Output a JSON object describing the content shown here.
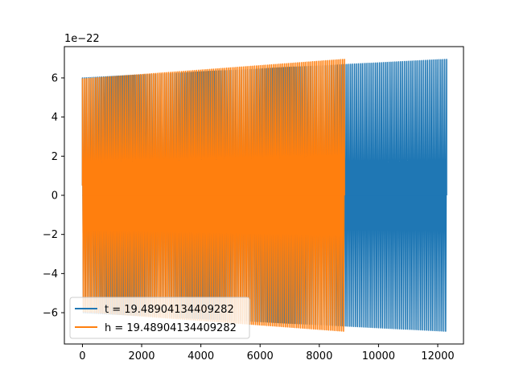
{
  "chart_data": {
    "type": "line",
    "title": "",
    "xlabel": "",
    "ylabel": "",
    "xlim": [
      -610,
      12870
    ],
    "ylim": [
      -7.6,
      7.6
    ],
    "y_offset_label": "1e−22",
    "x_ticks": [
      0,
      2000,
      4000,
      6000,
      8000,
      10000,
      12000
    ],
    "x_tick_labels": [
      "0",
      "2000",
      "4000",
      "6000",
      "8000",
      "10000",
      "12000"
    ],
    "y_ticks": [
      -6,
      -4,
      -2,
      0,
      2,
      4,
      6
    ],
    "y_tick_labels": [
      "−6",
      "−4",
      "−2",
      "0",
      "2",
      "4",
      "6"
    ],
    "grid": false,
    "legend_position": "lower-left",
    "series": [
      {
        "name": "t = 19.48904134409282",
        "color": "#1f77b4",
        "x_range": [
          0,
          12300
        ],
        "amplitude_range": [
          6.0,
          6.95
        ],
        "oscillation_count": 190
      },
      {
        "name": "h = 19.48904134409282",
        "color": "#ff7f0e",
        "x_range": [
          0,
          8850
        ],
        "amplitude_range": [
          5.95,
          6.95
        ],
        "oscillation_count": 140
      }
    ]
  }
}
